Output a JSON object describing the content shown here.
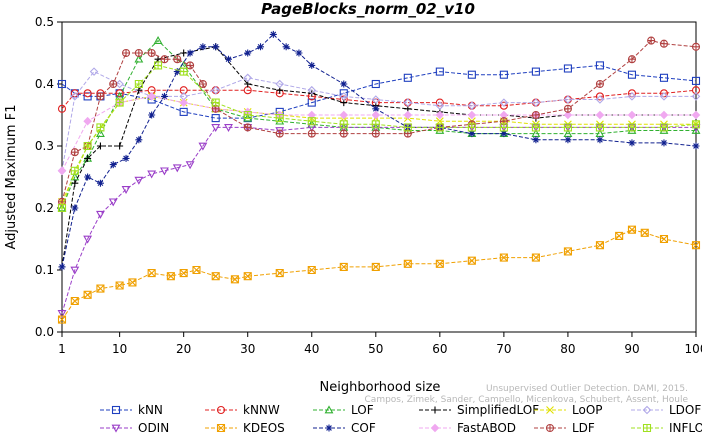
{
  "chart_data": {
    "type": "line",
    "title": "PageBlocks_norm_02_v10",
    "xlabel": "Neighborhood size",
    "ylabel": "Adjusted Maximum F1",
    "xlim": [
      1,
      100
    ],
    "ylim": [
      0,
      0.5
    ],
    "xticks": [
      1,
      10,
      20,
      30,
      40,
      50,
      60,
      70,
      80,
      90,
      100
    ],
    "yticks": [
      0.0,
      0.1,
      0.2,
      0.3,
      0.4,
      0.5
    ],
    "grid": false,
    "legend_position": "bottom",
    "series": [
      {
        "name": "kNN",
        "color": "#1f3fbf",
        "marker": "square",
        "x": [
          1,
          3,
          5,
          7,
          10,
          15,
          20,
          25,
          30,
          35,
          40,
          45,
          50,
          55,
          60,
          65,
          70,
          75,
          80,
          85,
          90,
          95,
          100
        ],
        "y": [
          0.4,
          0.385,
          0.38,
          0.38,
          0.385,
          0.375,
          0.355,
          0.345,
          0.345,
          0.355,
          0.37,
          0.385,
          0.4,
          0.41,
          0.42,
          0.415,
          0.415,
          0.42,
          0.425,
          0.43,
          0.415,
          0.41,
          0.405
        ]
      },
      {
        "name": "kNNW",
        "color": "#e02020",
        "marker": "circle",
        "x": [
          1,
          3,
          5,
          7,
          10,
          15,
          20,
          25,
          30,
          35,
          40,
          45,
          50,
          55,
          60,
          65,
          70,
          75,
          80,
          85,
          90,
          95,
          100
        ],
        "y": [
          0.36,
          0.385,
          0.385,
          0.385,
          0.385,
          0.39,
          0.39,
          0.39,
          0.39,
          0.385,
          0.38,
          0.375,
          0.37,
          0.37,
          0.37,
          0.365,
          0.365,
          0.37,
          0.375,
          0.38,
          0.385,
          0.385,
          0.39
        ]
      },
      {
        "name": "LOF",
        "color": "#30b030",
        "marker": "triangle-up",
        "x": [
          1,
          3,
          5,
          7,
          10,
          13,
          16,
          20,
          25,
          30,
          35,
          40,
          45,
          50,
          55,
          60,
          65,
          70,
          75,
          80,
          85,
          90,
          95,
          100
        ],
        "y": [
          0.2,
          0.25,
          0.28,
          0.32,
          0.38,
          0.44,
          0.47,
          0.43,
          0.36,
          0.345,
          0.34,
          0.335,
          0.33,
          0.33,
          0.325,
          0.325,
          0.32,
          0.32,
          0.32,
          0.32,
          0.32,
          0.325,
          0.325,
          0.325
        ]
      },
      {
        "name": "SimplifiedLOF",
        "color": "#000000",
        "marker": "plus",
        "x": [
          1,
          3,
          5,
          7,
          10,
          13,
          16,
          20,
          25,
          30,
          35,
          40,
          45,
          50,
          55,
          60,
          65,
          70,
          75,
          80,
          85,
          90,
          95,
          100
        ],
        "y": [
          0.105,
          0.24,
          0.28,
          0.3,
          0.3,
          0.39,
          0.44,
          0.45,
          0.46,
          0.4,
          0.39,
          0.385,
          0.37,
          0.365,
          0.36,
          0.355,
          0.35,
          0.35,
          0.345,
          0.35,
          0.35,
          0.35,
          0.35,
          0.35
        ]
      },
      {
        "name": "LoOP",
        "color": "#e0e000",
        "marker": "cross",
        "x": [
          1,
          5,
          10,
          15,
          20,
          25,
          30,
          35,
          40,
          45,
          50,
          55,
          60,
          65,
          70,
          75,
          80,
          85,
          90,
          95,
          100
        ],
        "y": [
          0.21,
          0.3,
          0.37,
          0.38,
          0.37,
          0.36,
          0.355,
          0.35,
          0.345,
          0.345,
          0.345,
          0.345,
          0.34,
          0.34,
          0.34,
          0.335,
          0.335,
          0.335,
          0.335,
          0.335,
          0.335
        ]
      },
      {
        "name": "LDOF",
        "color": "#b0a8e8",
        "marker": "diamond",
        "x": [
          1,
          3,
          6,
          10,
          15,
          20,
          25,
          30,
          35,
          40,
          45,
          50,
          55,
          60,
          65,
          70,
          75,
          80,
          85,
          90,
          95,
          100
        ],
        "y": [
          0.26,
          0.38,
          0.42,
          0.4,
          0.38,
          0.38,
          0.39,
          0.41,
          0.4,
          0.39,
          0.38,
          0.375,
          0.37,
          0.365,
          0.365,
          0.37,
          0.37,
          0.375,
          0.375,
          0.38,
          0.38,
          0.38
        ]
      },
      {
        "name": "ODIN",
        "color": "#9a3ec8",
        "marker": "triangle-down",
        "x": [
          1,
          3,
          5,
          7,
          9,
          11,
          13,
          15,
          17,
          19,
          21,
          23,
          25,
          27,
          30,
          35,
          40,
          45,
          50,
          55,
          60,
          65,
          70,
          75,
          80,
          85,
          90,
          95,
          100
        ],
        "y": [
          0.03,
          0.1,
          0.15,
          0.19,
          0.21,
          0.23,
          0.245,
          0.255,
          0.26,
          0.265,
          0.27,
          0.3,
          0.33,
          0.33,
          0.33,
          0.325,
          0.33,
          0.33,
          0.33,
          0.33,
          0.33,
          0.33,
          0.33,
          0.33,
          0.33,
          0.33,
          0.33,
          0.33,
          0.33
        ]
      },
      {
        "name": "KDEOS",
        "color": "#f0a000",
        "marker": "square-x",
        "x": [
          1,
          3,
          5,
          7,
          10,
          12,
          15,
          18,
          20,
          22,
          25,
          28,
          30,
          35,
          40,
          45,
          50,
          55,
          60,
          65,
          70,
          75,
          80,
          85,
          88,
          90,
          92,
          95,
          100
        ],
        "y": [
          0.02,
          0.05,
          0.06,
          0.07,
          0.075,
          0.08,
          0.095,
          0.09,
          0.095,
          0.1,
          0.09,
          0.085,
          0.09,
          0.095,
          0.1,
          0.105,
          0.105,
          0.11,
          0.11,
          0.115,
          0.12,
          0.12,
          0.13,
          0.14,
          0.155,
          0.165,
          0.16,
          0.15,
          0.14
        ]
      },
      {
        "name": "COF",
        "color": "#10208f",
        "marker": "asterisk",
        "x": [
          1,
          3,
          5,
          7,
          9,
          11,
          13,
          15,
          17,
          19,
          21,
          23,
          25,
          27,
          30,
          32,
          34,
          36,
          38,
          40,
          45,
          50,
          55,
          60,
          65,
          70,
          75,
          80,
          85,
          90,
          95,
          100
        ],
        "y": [
          0.105,
          0.2,
          0.25,
          0.24,
          0.27,
          0.28,
          0.31,
          0.35,
          0.38,
          0.42,
          0.45,
          0.46,
          0.46,
          0.44,
          0.45,
          0.46,
          0.48,
          0.46,
          0.45,
          0.43,
          0.4,
          0.36,
          0.33,
          0.33,
          0.32,
          0.32,
          0.31,
          0.31,
          0.31,
          0.305,
          0.305,
          0.3
        ]
      },
      {
        "name": "FastABOD",
        "color": "#f0a8f0",
        "marker": "diamond-filled",
        "x": [
          1,
          5,
          10,
          15,
          20,
          25,
          30,
          35,
          40,
          45,
          50,
          55,
          60,
          65,
          70,
          75,
          80,
          85,
          90,
          95,
          100
        ],
        "y": [
          0.26,
          0.34,
          0.37,
          0.38,
          0.37,
          0.36,
          0.355,
          0.35,
          0.35,
          0.35,
          0.35,
          0.35,
          0.35,
          0.35,
          0.35,
          0.35,
          0.35,
          0.35,
          0.35,
          0.35,
          0.35
        ]
      },
      {
        "name": "LDF",
        "color": "#b04040",
        "marker": "circle-plus",
        "x": [
          1,
          3,
          5,
          7,
          9,
          11,
          13,
          15,
          17,
          19,
          21,
          23,
          25,
          30,
          35,
          40,
          45,
          50,
          55,
          60,
          65,
          70,
          75,
          80,
          85,
          90,
          93,
          95,
          100
        ],
        "y": [
          0.21,
          0.29,
          0.3,
          0.38,
          0.4,
          0.45,
          0.45,
          0.45,
          0.44,
          0.44,
          0.43,
          0.4,
          0.36,
          0.33,
          0.32,
          0.32,
          0.32,
          0.32,
          0.32,
          0.33,
          0.335,
          0.34,
          0.35,
          0.36,
          0.4,
          0.44,
          0.47,
          0.465,
          0.46
        ]
      },
      {
        "name": "INFLO",
        "color": "#a0e020",
        "marker": "square-cross",
        "x": [
          1,
          3,
          5,
          7,
          10,
          13,
          16,
          20,
          25,
          30,
          35,
          40,
          45,
          50,
          55,
          60,
          65,
          70,
          75,
          80,
          85,
          90,
          95,
          100
        ],
        "y": [
          0.2,
          0.26,
          0.3,
          0.33,
          0.37,
          0.4,
          0.43,
          0.42,
          0.37,
          0.35,
          0.345,
          0.34,
          0.335,
          0.335,
          0.33,
          0.33,
          0.33,
          0.33,
          0.33,
          0.33,
          0.33,
          0.33,
          0.33,
          0.335
        ]
      }
    ]
  },
  "watermark": {
    "line1": "Unsupervised Outlier Detection. DAMI, 2015.",
    "line2": "Campos, Zimek, Sander, Campello, Micenkova, Schubert, Assent, Houle"
  }
}
